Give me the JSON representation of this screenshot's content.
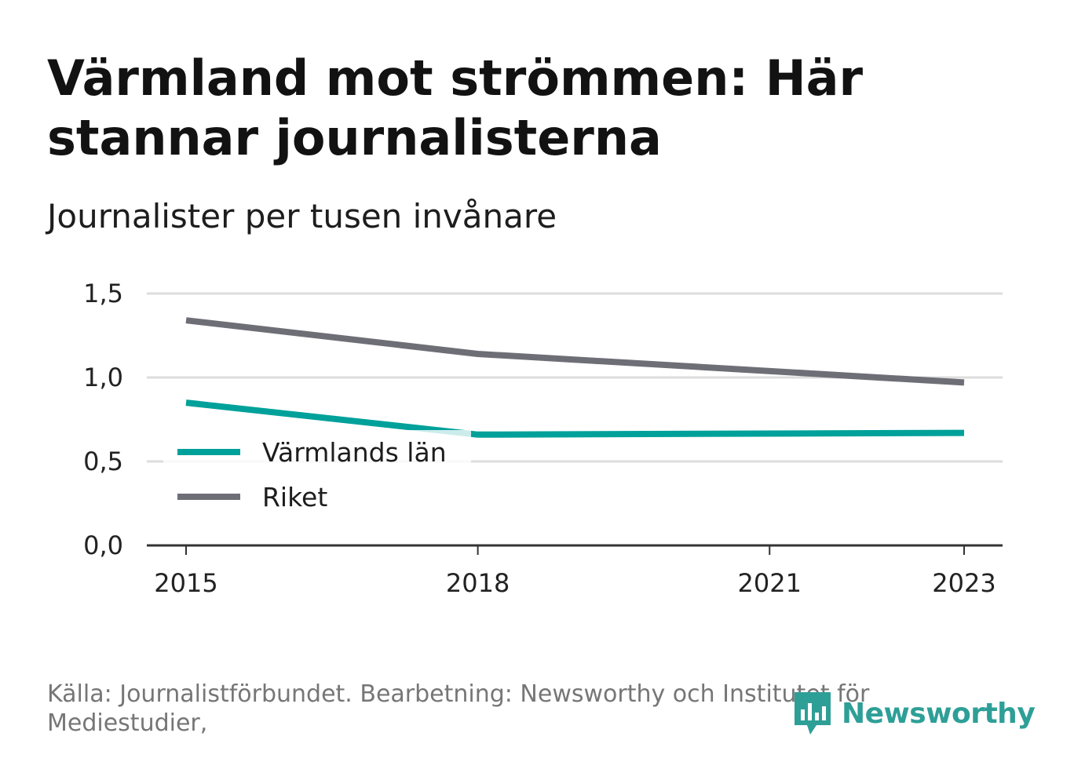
{
  "header": {
    "title": "Värmland mot strömmen: Här stannar journalisterna",
    "subtitle": "Journalister per tusen invånare"
  },
  "footer": {
    "source": "Källa: Journalistförbundet. Bearbetning: Newsworthy och Institutet för Mediestudier,",
    "logo_text": "Newsworthy",
    "logo_icon": "newsworthy-bar-chart-icon"
  },
  "colors": {
    "varmland": "#00a19a",
    "riket": "#6e6e76",
    "grid": "#dddddd",
    "axis": "#333333",
    "logo": "#2e9f97"
  },
  "chart_data": {
    "type": "line",
    "title": "Värmland mot strömmen: Här stannar journalisterna",
    "subtitle": "Journalister per tusen invånare",
    "xlabel": "",
    "ylabel": "",
    "ylim": [
      0,
      1.5
    ],
    "y_ticks": [
      0,
      0.5,
      1.0,
      1.5
    ],
    "y_tick_labels": [
      "0,0",
      "0,5",
      "1,0",
      "1,5"
    ],
    "x_ticks": [
      2015,
      2018,
      2021,
      2023
    ],
    "x_tick_labels": [
      "2015",
      "2018",
      "2021",
      "2023"
    ],
    "grid": "horizontal",
    "legend_placement": "bottom-left",
    "series": [
      {
        "name": "Värmlands län",
        "color": "#00a19a",
        "points": [
          {
            "x": 2015,
            "y": 0.85
          },
          {
            "x": 2018,
            "y": 0.66
          },
          {
            "x": 2023,
            "y": 0.67
          }
        ]
      },
      {
        "name": "Riket",
        "color": "#6e6e76",
        "points": [
          {
            "x": 2015,
            "y": 1.34
          },
          {
            "x": 2018,
            "y": 1.14
          },
          {
            "x": 2023,
            "y": 0.97
          }
        ]
      }
    ]
  }
}
